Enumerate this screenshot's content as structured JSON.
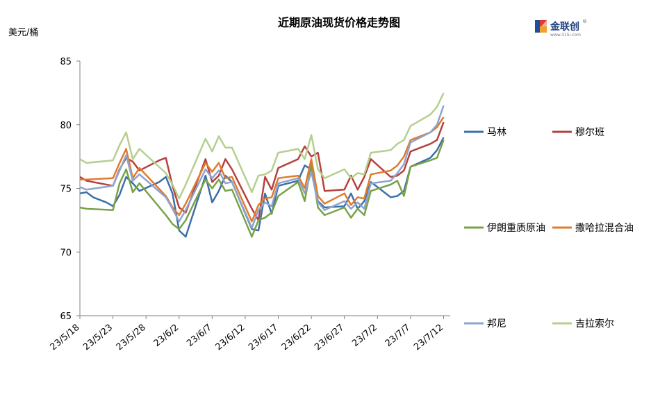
{
  "chart_data": {
    "type": "line",
    "title": "近期原油现货价格走势图",
    "unit_label": "美元/桶",
    "logo": {
      "name": "金联创",
      "site": "www.315i.com",
      "mark": "®"
    },
    "ylim": [
      65,
      85
    ],
    "yticks": [
      65,
      70,
      75,
      80,
      85
    ],
    "xlim": [
      "2023-05-18",
      "2023-07-13"
    ],
    "xticks": [
      "23/5/18",
      "23/5/23",
      "23/5/28",
      "23/6/2",
      "23/6/7",
      "23/6/12",
      "23/6/17",
      "23/6/22",
      "23/6/27",
      "23/7/2",
      "23/7/7",
      "23/7/12"
    ],
    "grid": false,
    "legend_position": "right",
    "series": [
      {
        "name": "马林",
        "color": "#3d6fa8",
        "points": [
          [
            "2023-05-18",
            74.6
          ],
          [
            "2023-05-19",
            74.7
          ],
          [
            "2023-05-20",
            74.3
          ],
          [
            "2023-05-22",
            73.9
          ],
          [
            "2023-05-23",
            73.6
          ],
          [
            "2023-05-24",
            74.5
          ],
          [
            "2023-05-25",
            75.9
          ],
          [
            "2023-05-26",
            75.4
          ],
          [
            "2023-05-27",
            74.8
          ],
          [
            "2023-05-30",
            75.5
          ],
          [
            "2023-05-31",
            75.9
          ],
          [
            "2023-06-01",
            74.6
          ],
          [
            "2023-06-02",
            71.7
          ],
          [
            "2023-06-03",
            71.2
          ],
          [
            "2023-06-06",
            76.0
          ],
          [
            "2023-06-07",
            73.9
          ],
          [
            "2023-06-08",
            74.8
          ],
          [
            "2023-06-09",
            76.0
          ],
          [
            "2023-06-10",
            75.5
          ],
          [
            "2023-06-13",
            71.8
          ],
          [
            "2023-06-14",
            71.7
          ],
          [
            "2023-06-15",
            74.6
          ],
          [
            "2023-06-16",
            73.0
          ],
          [
            "2023-06-17",
            75.2
          ],
          [
            "2023-06-20",
            75.6
          ],
          [
            "2023-06-21",
            76.8
          ],
          [
            "2023-06-22",
            76.5
          ],
          [
            "2023-06-23",
            74.0
          ],
          [
            "2023-06-24",
            73.5
          ],
          [
            "2023-06-27",
            73.6
          ],
          [
            "2023-06-28",
            74.6
          ],
          [
            "2023-06-29",
            73.4
          ],
          [
            "2023-06-30",
            74.0
          ],
          [
            "2023-07-01",
            75.5
          ],
          [
            "2023-07-04",
            74.3
          ],
          [
            "2023-07-05",
            74.4
          ],
          [
            "2023-07-06",
            74.8
          ],
          [
            "2023-07-07",
            76.7
          ],
          [
            "2023-07-10",
            77.4
          ],
          [
            "2023-07-11",
            78.0
          ],
          [
            "2023-07-12",
            79.0
          ]
        ]
      },
      {
        "name": "穆尔班",
        "color": "#b5413f",
        "points": [
          [
            "2023-05-18",
            75.9
          ],
          [
            "2023-05-19",
            75.6
          ],
          [
            "2023-05-23",
            75.2
          ],
          [
            "2023-05-24",
            76.5
          ],
          [
            "2023-05-25",
            77.4
          ],
          [
            "2023-05-26",
            77.1
          ],
          [
            "2023-05-27",
            76.4
          ],
          [
            "2023-05-30",
            77.2
          ],
          [
            "2023-05-31",
            77.4
          ],
          [
            "2023-06-01",
            75.2
          ],
          [
            "2023-06-02",
            73.5
          ],
          [
            "2023-06-03",
            73.1
          ],
          [
            "2023-06-06",
            77.3
          ],
          [
            "2023-06-07",
            75.5
          ],
          [
            "2023-06-08",
            76.0
          ],
          [
            "2023-06-09",
            77.3
          ],
          [
            "2023-06-10",
            76.5
          ],
          [
            "2023-06-13",
            73.4
          ],
          [
            "2023-06-14",
            72.5
          ],
          [
            "2023-06-15",
            75.9
          ],
          [
            "2023-06-16",
            74.9
          ],
          [
            "2023-06-17",
            76.6
          ],
          [
            "2023-06-20",
            77.3
          ],
          [
            "2023-06-21",
            78.3
          ],
          [
            "2023-06-22",
            77.5
          ],
          [
            "2023-06-23",
            77.8
          ],
          [
            "2023-06-24",
            74.8
          ],
          [
            "2023-06-27",
            74.9
          ],
          [
            "2023-06-28",
            76.0
          ],
          [
            "2023-06-29",
            74.9
          ],
          [
            "2023-06-30",
            75.9
          ],
          [
            "2023-07-01",
            77.3
          ],
          [
            "2023-07-04",
            75.9
          ],
          [
            "2023-07-05",
            76.0
          ],
          [
            "2023-07-06",
            76.4
          ],
          [
            "2023-07-07",
            77.9
          ],
          [
            "2023-07-10",
            78.5
          ],
          [
            "2023-07-11",
            78.8
          ],
          [
            "2023-07-12",
            80.2
          ]
        ]
      },
      {
        "name": "伊朗重质原油",
        "color": "#79a245",
        "points": [
          [
            "2023-05-18",
            73.5
          ],
          [
            "2023-05-19",
            73.4
          ],
          [
            "2023-05-23",
            73.3
          ],
          [
            "2023-05-24",
            75.4
          ],
          [
            "2023-05-25",
            76.5
          ],
          [
            "2023-05-26",
            74.7
          ],
          [
            "2023-05-27",
            75.4
          ],
          [
            "2023-05-31",
            72.9
          ],
          [
            "2023-06-01",
            72.2
          ],
          [
            "2023-06-02",
            71.8
          ],
          [
            "2023-06-03",
            72.5
          ],
          [
            "2023-06-06",
            75.7
          ],
          [
            "2023-06-07",
            75.0
          ],
          [
            "2023-06-08",
            75.7
          ],
          [
            "2023-06-09",
            74.8
          ],
          [
            "2023-06-10",
            74.9
          ],
          [
            "2023-06-13",
            71.2
          ],
          [
            "2023-06-14",
            72.5
          ],
          [
            "2023-06-15",
            72.7
          ],
          [
            "2023-06-16",
            73.1
          ],
          [
            "2023-06-17",
            74.4
          ],
          [
            "2023-06-20",
            75.5
          ],
          [
            "2023-06-21",
            74.0
          ],
          [
            "2023-06-22",
            76.9
          ],
          [
            "2023-06-23",
            73.5
          ],
          [
            "2023-06-24",
            72.9
          ],
          [
            "2023-06-27",
            73.5
          ],
          [
            "2023-06-28",
            72.7
          ],
          [
            "2023-06-29",
            73.4
          ],
          [
            "2023-06-30",
            72.9
          ],
          [
            "2023-07-01",
            74.8
          ],
          [
            "2023-07-04",
            75.3
          ],
          [
            "2023-07-05",
            75.6
          ],
          [
            "2023-07-06",
            74.4
          ],
          [
            "2023-07-07",
            76.7
          ],
          [
            "2023-07-10",
            77.2
          ],
          [
            "2023-07-11",
            77.4
          ],
          [
            "2023-07-12",
            78.8
          ]
        ]
      },
      {
        "name": "撒哈拉混合油",
        "color": "#e07b2e",
        "points": [
          [
            "2023-05-18",
            75.7
          ],
          [
            "2023-05-19",
            75.7
          ],
          [
            "2023-05-23",
            75.8
          ],
          [
            "2023-05-24",
            77.0
          ],
          [
            "2023-05-25",
            78.1
          ],
          [
            "2023-05-26",
            75.8
          ],
          [
            "2023-05-27",
            76.6
          ],
          [
            "2023-05-31",
            74.4
          ],
          [
            "2023-06-01",
            73.5
          ],
          [
            "2023-06-02",
            72.9
          ],
          [
            "2023-06-03",
            73.8
          ],
          [
            "2023-06-06",
            77.0
          ],
          [
            "2023-06-07",
            76.3
          ],
          [
            "2023-06-08",
            77.0
          ],
          [
            "2023-06-09",
            75.8
          ],
          [
            "2023-06-10",
            75.9
          ],
          [
            "2023-06-13",
            72.4
          ],
          [
            "2023-06-14",
            73.7
          ],
          [
            "2023-06-15",
            74.2
          ],
          [
            "2023-06-16",
            74.3
          ],
          [
            "2023-06-17",
            75.8
          ],
          [
            "2023-06-20",
            76.0
          ],
          [
            "2023-06-21",
            75.0
          ],
          [
            "2023-06-22",
            77.3
          ],
          [
            "2023-06-23",
            74.4
          ],
          [
            "2023-06-24",
            73.8
          ],
          [
            "2023-06-27",
            74.6
          ],
          [
            "2023-06-28",
            73.7
          ],
          [
            "2023-06-29",
            74.3
          ],
          [
            "2023-06-30",
            74.2
          ],
          [
            "2023-07-01",
            76.1
          ],
          [
            "2023-07-04",
            76.4
          ],
          [
            "2023-07-05",
            76.8
          ],
          [
            "2023-07-06",
            77.5
          ],
          [
            "2023-07-07",
            78.8
          ],
          [
            "2023-07-10",
            79.4
          ],
          [
            "2023-07-11",
            79.8
          ],
          [
            "2023-07-12",
            80.6
          ]
        ]
      },
      {
        "name": "邦尼",
        "color": "#8ea4cd",
        "points": [
          [
            "2023-05-18",
            75.1
          ],
          [
            "2023-05-19",
            74.9
          ],
          [
            "2023-05-23",
            75.2
          ],
          [
            "2023-05-24",
            76.4
          ],
          [
            "2023-05-25",
            77.6
          ],
          [
            "2023-05-26",
            75.6
          ],
          [
            "2023-05-27",
            76.1
          ],
          [
            "2023-05-31",
            74.3
          ],
          [
            "2023-06-01",
            73.4
          ],
          [
            "2023-06-02",
            72.4
          ],
          [
            "2023-06-03",
            73.3
          ],
          [
            "2023-06-06",
            76.5
          ],
          [
            "2023-06-07",
            75.8
          ],
          [
            "2023-06-08",
            76.4
          ],
          [
            "2023-06-09",
            75.4
          ],
          [
            "2023-06-10",
            75.5
          ],
          [
            "2023-06-13",
            71.9
          ],
          [
            "2023-06-14",
            73.3
          ],
          [
            "2023-06-15",
            73.9
          ],
          [
            "2023-06-16",
            73.6
          ],
          [
            "2023-06-17",
            75.4
          ],
          [
            "2023-06-20",
            75.8
          ],
          [
            "2023-06-21",
            74.6
          ],
          [
            "2023-06-22",
            76.3
          ],
          [
            "2023-06-23",
            73.9
          ],
          [
            "2023-06-24",
            73.3
          ],
          [
            "2023-06-27",
            74.0
          ],
          [
            "2023-06-28",
            73.4
          ],
          [
            "2023-06-29",
            73.9
          ],
          [
            "2023-06-30",
            73.4
          ],
          [
            "2023-07-01",
            75.4
          ],
          [
            "2023-07-04",
            75.6
          ],
          [
            "2023-07-05",
            76.2
          ],
          [
            "2023-07-06",
            76.9
          ],
          [
            "2023-07-07",
            78.6
          ],
          [
            "2023-07-10",
            79.4
          ],
          [
            "2023-07-11",
            80.0
          ],
          [
            "2023-07-12",
            81.5
          ]
        ]
      },
      {
        "name": "吉拉索尔",
        "color": "#b5cf8e",
        "points": [
          [
            "2023-05-18",
            77.3
          ],
          [
            "2023-05-19",
            77.0
          ],
          [
            "2023-05-23",
            77.2
          ],
          [
            "2023-05-24",
            78.4
          ],
          [
            "2023-05-25",
            79.4
          ],
          [
            "2023-05-26",
            77.3
          ],
          [
            "2023-05-27",
            78.1
          ],
          [
            "2023-05-31",
            76.2
          ],
          [
            "2023-06-01",
            75.3
          ],
          [
            "2023-06-02",
            74.2
          ],
          [
            "2023-06-03",
            75.3
          ],
          [
            "2023-06-06",
            78.9
          ],
          [
            "2023-06-07",
            77.9
          ],
          [
            "2023-06-08",
            79.1
          ],
          [
            "2023-06-09",
            78.2
          ],
          [
            "2023-06-10",
            78.2
          ],
          [
            "2023-06-13",
            74.7
          ],
          [
            "2023-06-14",
            76.0
          ],
          [
            "2023-06-15",
            76.1
          ],
          [
            "2023-06-16",
            76.4
          ],
          [
            "2023-06-17",
            77.8
          ],
          [
            "2023-06-20",
            78.1
          ],
          [
            "2023-06-21",
            77.3
          ],
          [
            "2023-06-22",
            79.2
          ],
          [
            "2023-06-23",
            76.5
          ],
          [
            "2023-06-24",
            75.8
          ],
          [
            "2023-06-27",
            76.5
          ],
          [
            "2023-06-28",
            75.8
          ],
          [
            "2023-06-29",
            76.2
          ],
          [
            "2023-06-30",
            76.1
          ],
          [
            "2023-07-01",
            77.8
          ],
          [
            "2023-07-04",
            78.0
          ],
          [
            "2023-07-05",
            78.5
          ],
          [
            "2023-07-06",
            78.8
          ],
          [
            "2023-07-07",
            79.9
          ],
          [
            "2023-07-10",
            80.8
          ],
          [
            "2023-07-11",
            81.4
          ],
          [
            "2023-07-12",
            82.5
          ]
        ]
      }
    ]
  }
}
